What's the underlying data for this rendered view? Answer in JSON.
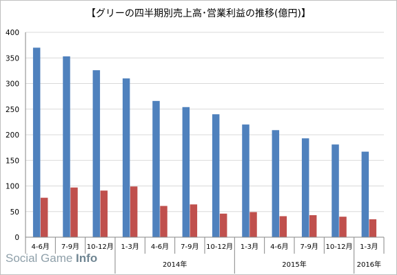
{
  "chart_data": {
    "type": "bar",
    "title": "【グリーの四半期別売上高･営業利益の推移(億円)】",
    "categories": [
      "4-6月",
      "7-9月",
      "10-12月",
      "1-3月",
      "4-6月",
      "7-9月",
      "10-12月",
      "1-3月",
      "4-6月",
      "7-9月",
      "10-12月",
      "1-3月"
    ],
    "year_groups": [
      {
        "label": "",
        "count": 3
      },
      {
        "label": "2014年",
        "count": 4
      },
      {
        "label": "2015年",
        "count": 4
      },
      {
        "label": "2016年",
        "count": 1
      }
    ],
    "series": [
      {
        "color": "#4f81bd",
        "values": [
          370,
          353,
          326,
          310,
          266,
          254,
          240,
          220,
          209,
          193,
          181,
          167
        ]
      },
      {
        "color": "#c0504d",
        "values": [
          77,
          97,
          91,
          99,
          61,
          64,
          46,
          49,
          41,
          43,
          40,
          35
        ]
      }
    ],
    "ylim": [
      0,
      400
    ],
    "yticks": [
      0,
      50,
      100,
      150,
      200,
      250,
      300,
      350,
      400
    ],
    "grid": true,
    "legend": "none"
  },
  "watermark": {
    "text_light": "Social Game ",
    "text_strong": "Info"
  }
}
